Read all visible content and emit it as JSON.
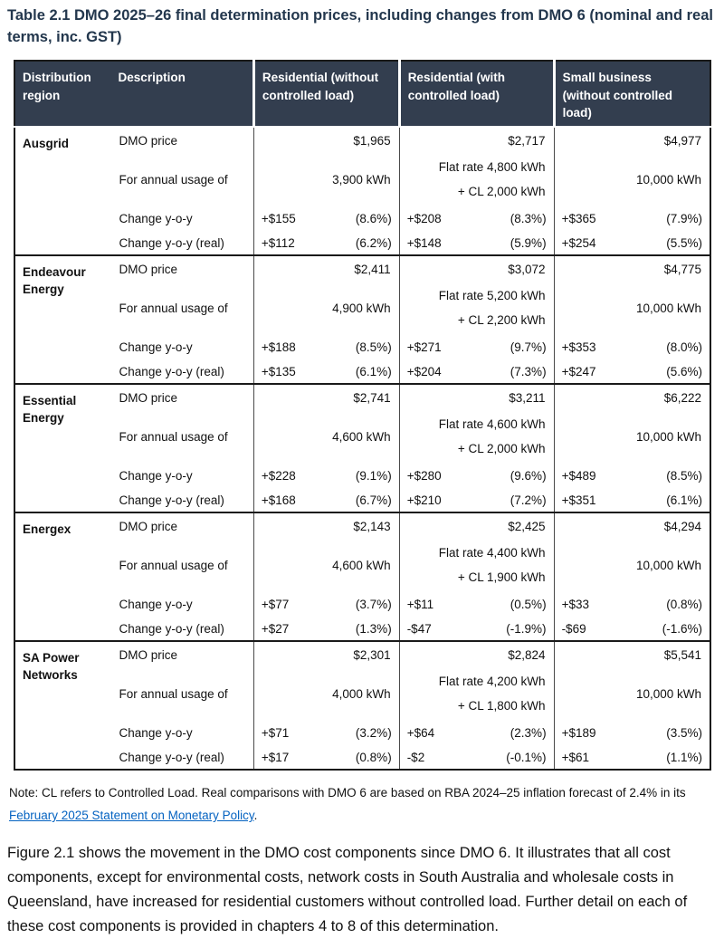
{
  "title": "Table 2.1 DMO 2025–26 final determination prices, including changes from DMO 6 (nominal and real terms, inc. GST)",
  "colors": {
    "header_bg": "#333e4f",
    "header_text": "#ffffff",
    "title_text": "#23374d",
    "link": "#0563c1",
    "border_dark": "#1a1a1a"
  },
  "table": {
    "headers": {
      "region": "Distribution region",
      "description": "Description",
      "res_no_cl": "Residential (without controlled load)",
      "res_cl": "Residential (with controlled load)",
      "smb": "Small business (without controlled load)"
    },
    "row_labels": {
      "price": "DMO price",
      "usage": "For annual usage of",
      "yoy": "Change y-o-y",
      "yoy_real": "Change y-o-y (real)"
    },
    "groups": [
      {
        "region": "Ausgrid",
        "price": {
          "res_no_cl": "$1,965",
          "res_cl": "$2,717",
          "smb": "$4,977"
        },
        "usage": {
          "res_no_cl": "3,900 kWh",
          "res_cl_flat": "Flat rate 4,800 kWh",
          "res_cl_cl": "+ CL 2,000 kWh",
          "smb": "10,000 kWh"
        },
        "yoy": {
          "res_no_cl": {
            "amt": "+$155",
            "pct": "(8.6%)"
          },
          "res_cl": {
            "amt": "+$208",
            "pct": "(8.3%)"
          },
          "smb": {
            "amt": "+$365",
            "pct": "(7.9%)"
          }
        },
        "yoy_real": {
          "res_no_cl": {
            "amt": "+$112",
            "pct": "(6.2%)"
          },
          "res_cl": {
            "amt": "+$148",
            "pct": "(5.9%)"
          },
          "smb": {
            "amt": "+$254",
            "pct": "(5.5%)"
          }
        }
      },
      {
        "region": "Endeavour Energy",
        "price": {
          "res_no_cl": "$2,411",
          "res_cl": "$3,072",
          "smb": "$4,775"
        },
        "usage": {
          "res_no_cl": "4,900 kWh",
          "res_cl_flat": "Flat rate 5,200 kWh",
          "res_cl_cl": "+ CL 2,200 kWh",
          "smb": "10,000 kWh"
        },
        "yoy": {
          "res_no_cl": {
            "amt": "+$188",
            "pct": "(8.5%)"
          },
          "res_cl": {
            "amt": "+$271",
            "pct": "(9.7%)"
          },
          "smb": {
            "amt": "+$353",
            "pct": "(8.0%)"
          }
        },
        "yoy_real": {
          "res_no_cl": {
            "amt": "+$135",
            "pct": "(6.1%)"
          },
          "res_cl": {
            "amt": "+$204",
            "pct": "(7.3%)"
          },
          "smb": {
            "amt": "+$247",
            "pct": "(5.6%)"
          }
        }
      },
      {
        "region": "Essential Energy",
        "price": {
          "res_no_cl": "$2,741",
          "res_cl": "$3,211",
          "smb": "$6,222"
        },
        "usage": {
          "res_no_cl": "4,600 kWh",
          "res_cl_flat": "Flat rate 4,600 kWh",
          "res_cl_cl": "+ CL 2,000 kWh",
          "smb": "10,000 kWh"
        },
        "yoy": {
          "res_no_cl": {
            "amt": "+$228",
            "pct": "(9.1%)"
          },
          "res_cl": {
            "amt": "+$280",
            "pct": "(9.6%)"
          },
          "smb": {
            "amt": "+$489",
            "pct": "(8.5%)"
          }
        },
        "yoy_real": {
          "res_no_cl": {
            "amt": "+$168",
            "pct": "(6.7%)"
          },
          "res_cl": {
            "amt": "+$210",
            "pct": "(7.2%)"
          },
          "smb": {
            "amt": "+$351",
            "pct": "(6.1%)"
          }
        }
      },
      {
        "region": "Energex",
        "price": {
          "res_no_cl": "$2,143",
          "res_cl": "$2,425",
          "smb": "$4,294"
        },
        "usage": {
          "res_no_cl": "4,600 kWh",
          "res_cl_flat": "Flat rate 4,400 kWh",
          "res_cl_cl": "+ CL 1,900 kWh",
          "smb": "10,000 kWh"
        },
        "yoy": {
          "res_no_cl": {
            "amt": "+$77",
            "pct": "(3.7%)"
          },
          "res_cl": {
            "amt": "+$11",
            "pct": "(0.5%)"
          },
          "smb": {
            "amt": "+$33",
            "pct": "(0.8%)"
          }
        },
        "yoy_real": {
          "res_no_cl": {
            "amt": "+$27",
            "pct": "(1.3%)"
          },
          "res_cl": {
            "amt": "-$47",
            "pct": "(-1.9%)"
          },
          "smb": {
            "amt": "-$69",
            "pct": "(-1.6%)"
          }
        }
      },
      {
        "region": "SA Power Networks",
        "price": {
          "res_no_cl": "$2,301",
          "res_cl": "$2,824",
          "smb": "$5,541"
        },
        "usage": {
          "res_no_cl": "4,000 kWh",
          "res_cl_flat": "Flat rate 4,200 kWh",
          "res_cl_cl": "+ CL 1,800 kWh",
          "smb": "10,000 kWh"
        },
        "yoy": {
          "res_no_cl": {
            "amt": "+$71",
            "pct": "(3.2%)"
          },
          "res_cl": {
            "amt": "+$64",
            "pct": "(2.3%)"
          },
          "smb": {
            "amt": "+$189",
            "pct": "(3.5%)"
          }
        },
        "yoy_real": {
          "res_no_cl": {
            "amt": "+$17",
            "pct": "(0.8%)"
          },
          "res_cl": {
            "amt": "-$2",
            "pct": "(-0.1%)"
          },
          "smb": {
            "amt": "+$61",
            "pct": "(1.1%)"
          }
        }
      }
    ]
  },
  "note": {
    "prefix": "Note: CL refers to Controlled Load. Real comparisons with DMO 6 are based on RBA 2024–25 inflation forecast of 2.4% in its ",
    "link_text": "February 2025 Statement on Monetary Policy",
    "suffix": "."
  },
  "paragraph": "Figure 2.1 shows the movement in the DMO cost components since DMO 6. It illustrates that all cost components, except for environmental costs, network costs in South Australia and wholesale costs in Queensland, have increased for residential customers without controlled load. Further detail on each of these cost components is provided in chapters 4 to 8 of this determination."
}
